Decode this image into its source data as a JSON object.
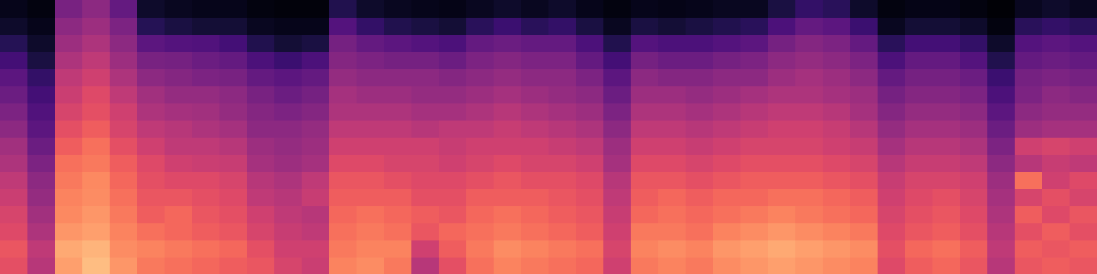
{
  "chart_data": {
    "type": "heatmap",
    "color": "magma",
    "tick_labels": false,
    "zlim": [
      0,
      100
    ],
    "z": [
      [
        62,
        64,
        60,
        58,
        55,
        52,
        48,
        45,
        40,
        36,
        32,
        28,
        22,
        15,
        8,
        5
      ],
      [
        50,
        52,
        48,
        45,
        42,
        40,
        36,
        32,
        28,
        25,
        22,
        18,
        12,
        8,
        5,
        3
      ],
      [
        80,
        82,
        78,
        75,
        74,
        72,
        70,
        66,
        62,
        58,
        55,
        52,
        48,
        44,
        40,
        35
      ],
      [
        86,
        84,
        80,
        78,
        76,
        75,
        72,
        70,
        66,
        62,
        60,
        56,
        52,
        48,
        44,
        40
      ],
      [
        78,
        76,
        74,
        72,
        70,
        68,
        66,
        62,
        58,
        56,
        52,
        48,
        44,
        40,
        36,
        30
      ],
      [
        72,
        74,
        70,
        66,
        64,
        62,
        60,
        56,
        52,
        48,
        45,
        40,
        35,
        28,
        15,
        8
      ],
      [
        70,
        72,
        68,
        68,
        64,
        60,
        56,
        52,
        50,
        46,
        42,
        38,
        34,
        26,
        12,
        6
      ],
      [
        68,
        70,
        66,
        64,
        62,
        60,
        55,
        52,
        48,
        45,
        42,
        36,
        32,
        25,
        10,
        5
      ],
      [
        66,
        68,
        64,
        62,
        60,
        58,
        54,
        50,
        46,
        42,
        40,
        35,
        30,
        22,
        10,
        5
      ],
      [
        64,
        62,
        58,
        56,
        52,
        50,
        46,
        44,
        40,
        38,
        35,
        30,
        24,
        14,
        6,
        3
      ],
      [
        58,
        56,
        54,
        52,
        50,
        48,
        44,
        42,
        40,
        36,
        32,
        28,
        20,
        10,
        5,
        2
      ],
      [
        55,
        56,
        52,
        50,
        54,
        52,
        46,
        44,
        42,
        38,
        34,
        30,
        24,
        12,
        5,
        2
      ],
      [
        74,
        72,
        70,
        68,
        66,
        64,
        60,
        56,
        52,
        48,
        46,
        42,
        38,
        34,
        26,
        14
      ],
      [
        76,
        74,
        72,
        70,
        66,
        64,
        60,
        56,
        52,
        48,
        44,
        40,
        36,
        30,
        18,
        8
      ],
      [
        72,
        74,
        70,
        68,
        66,
        62,
        58,
        56,
        52,
        48,
        44,
        40,
        34,
        28,
        14,
        6
      ],
      [
        50,
        56,
        64,
        66,
        62,
        60,
        58,
        56,
        50,
        46,
        42,
        40,
        34,
        26,
        12,
        5
      ],
      [
        62,
        66,
        68,
        64,
        62,
        60,
        56,
        54,
        52,
        46,
        42,
        38,
        32,
        24,
        10,
        4
      ],
      [
        70,
        72,
        70,
        68,
        66,
        62,
        58,
        56,
        52,
        48,
        44,
        40,
        36,
        30,
        16,
        6
      ],
      [
        74,
        76,
        72,
        70,
        66,
        64,
        60,
        56,
        54,
        50,
        46,
        42,
        38,
        32,
        20,
        8
      ],
      [
        72,
        74,
        70,
        68,
        66,
        62,
        58,
        56,
        52,
        48,
        44,
        40,
        36,
        30,
        16,
        6
      ],
      [
        70,
        72,
        68,
        66,
        64,
        62,
        58,
        54,
        50,
        46,
        42,
        40,
        36,
        30,
        18,
        8
      ],
      [
        68,
        70,
        66,
        64,
        62,
        60,
        56,
        52,
        48,
        44,
        40,
        36,
        30,
        24,
        12,
        5
      ],
      [
        56,
        58,
        56,
        54,
        52,
        50,
        46,
        44,
        40,
        36,
        32,
        28,
        22,
        14,
        6,
        3
      ],
      [
        72,
        74,
        72,
        68,
        66,
        64,
        60,
        56,
        52,
        48,
        44,
        40,
        34,
        26,
        12,
        5
      ],
      [
        74,
        76,
        72,
        70,
        68,
        64,
        60,
        56,
        52,
        48,
        44,
        38,
        32,
        24,
        10,
        4
      ],
      [
        72,
        74,
        70,
        68,
        66,
        62,
        58,
        54,
        50,
        46,
        42,
        38,
        32,
        24,
        12,
        5
      ],
      [
        76,
        78,
        74,
        70,
        68,
        64,
        60,
        56,
        52,
        48,
        44,
        40,
        34,
        26,
        14,
        6
      ],
      [
        78,
        80,
        76,
        72,
        68,
        66,
        62,
        58,
        54,
        50,
        46,
        40,
        36,
        28,
        16,
        6
      ],
      [
        80,
        82,
        78,
        74,
        70,
        66,
        62,
        58,
        56,
        52,
        48,
        44,
        40,
        34,
        24,
        12
      ],
      [
        78,
        80,
        76,
        72,
        70,
        66,
        62,
        58,
        56,
        52,
        48,
        46,
        42,
        38,
        30,
        18
      ],
      [
        76,
        78,
        74,
        70,
        68,
        64,
        60,
        56,
        54,
        50,
        46,
        44,
        40,
        36,
        28,
        16
      ],
      [
        74,
        76,
        72,
        68,
        66,
        62,
        58,
        54,
        50,
        46,
        44,
        40,
        36,
        30,
        20,
        8
      ],
      [
        60,
        62,
        60,
        58,
        56,
        54,
        50,
        46,
        42,
        38,
        34,
        30,
        24,
        16,
        6,
        3
      ],
      [
        66,
        68,
        64,
        62,
        60,
        58,
        54,
        50,
        46,
        42,
        38,
        34,
        30,
        22,
        10,
        4
      ],
      [
        68,
        70,
        66,
        64,
        62,
        58,
        54,
        50,
        46,
        42,
        38,
        34,
        30,
        22,
        10,
        4
      ],
      [
        64,
        66,
        62,
        60,
        58,
        56,
        52,
        48,
        44,
        40,
        36,
        32,
        26,
        18,
        8,
        3
      ],
      [
        50,
        52,
        50,
        48,
        46,
        44,
        40,
        36,
        32,
        28,
        24,
        20,
        14,
        8,
        3,
        1
      ],
      [
        64,
        66,
        62,
        66,
        58,
        70,
        50,
        56,
        44,
        40,
        36,
        34,
        30,
        26,
        16,
        6
      ],
      [
        66,
        64,
        66,
        60,
        62,
        56,
        54,
        58,
        46,
        42,
        40,
        36,
        32,
        28,
        18,
        8
      ],
      [
        64,
        66,
        62,
        64,
        58,
        60,
        52,
        56,
        46,
        42,
        38,
        34,
        30,
        26,
        16,
        6
      ]
    ]
  }
}
